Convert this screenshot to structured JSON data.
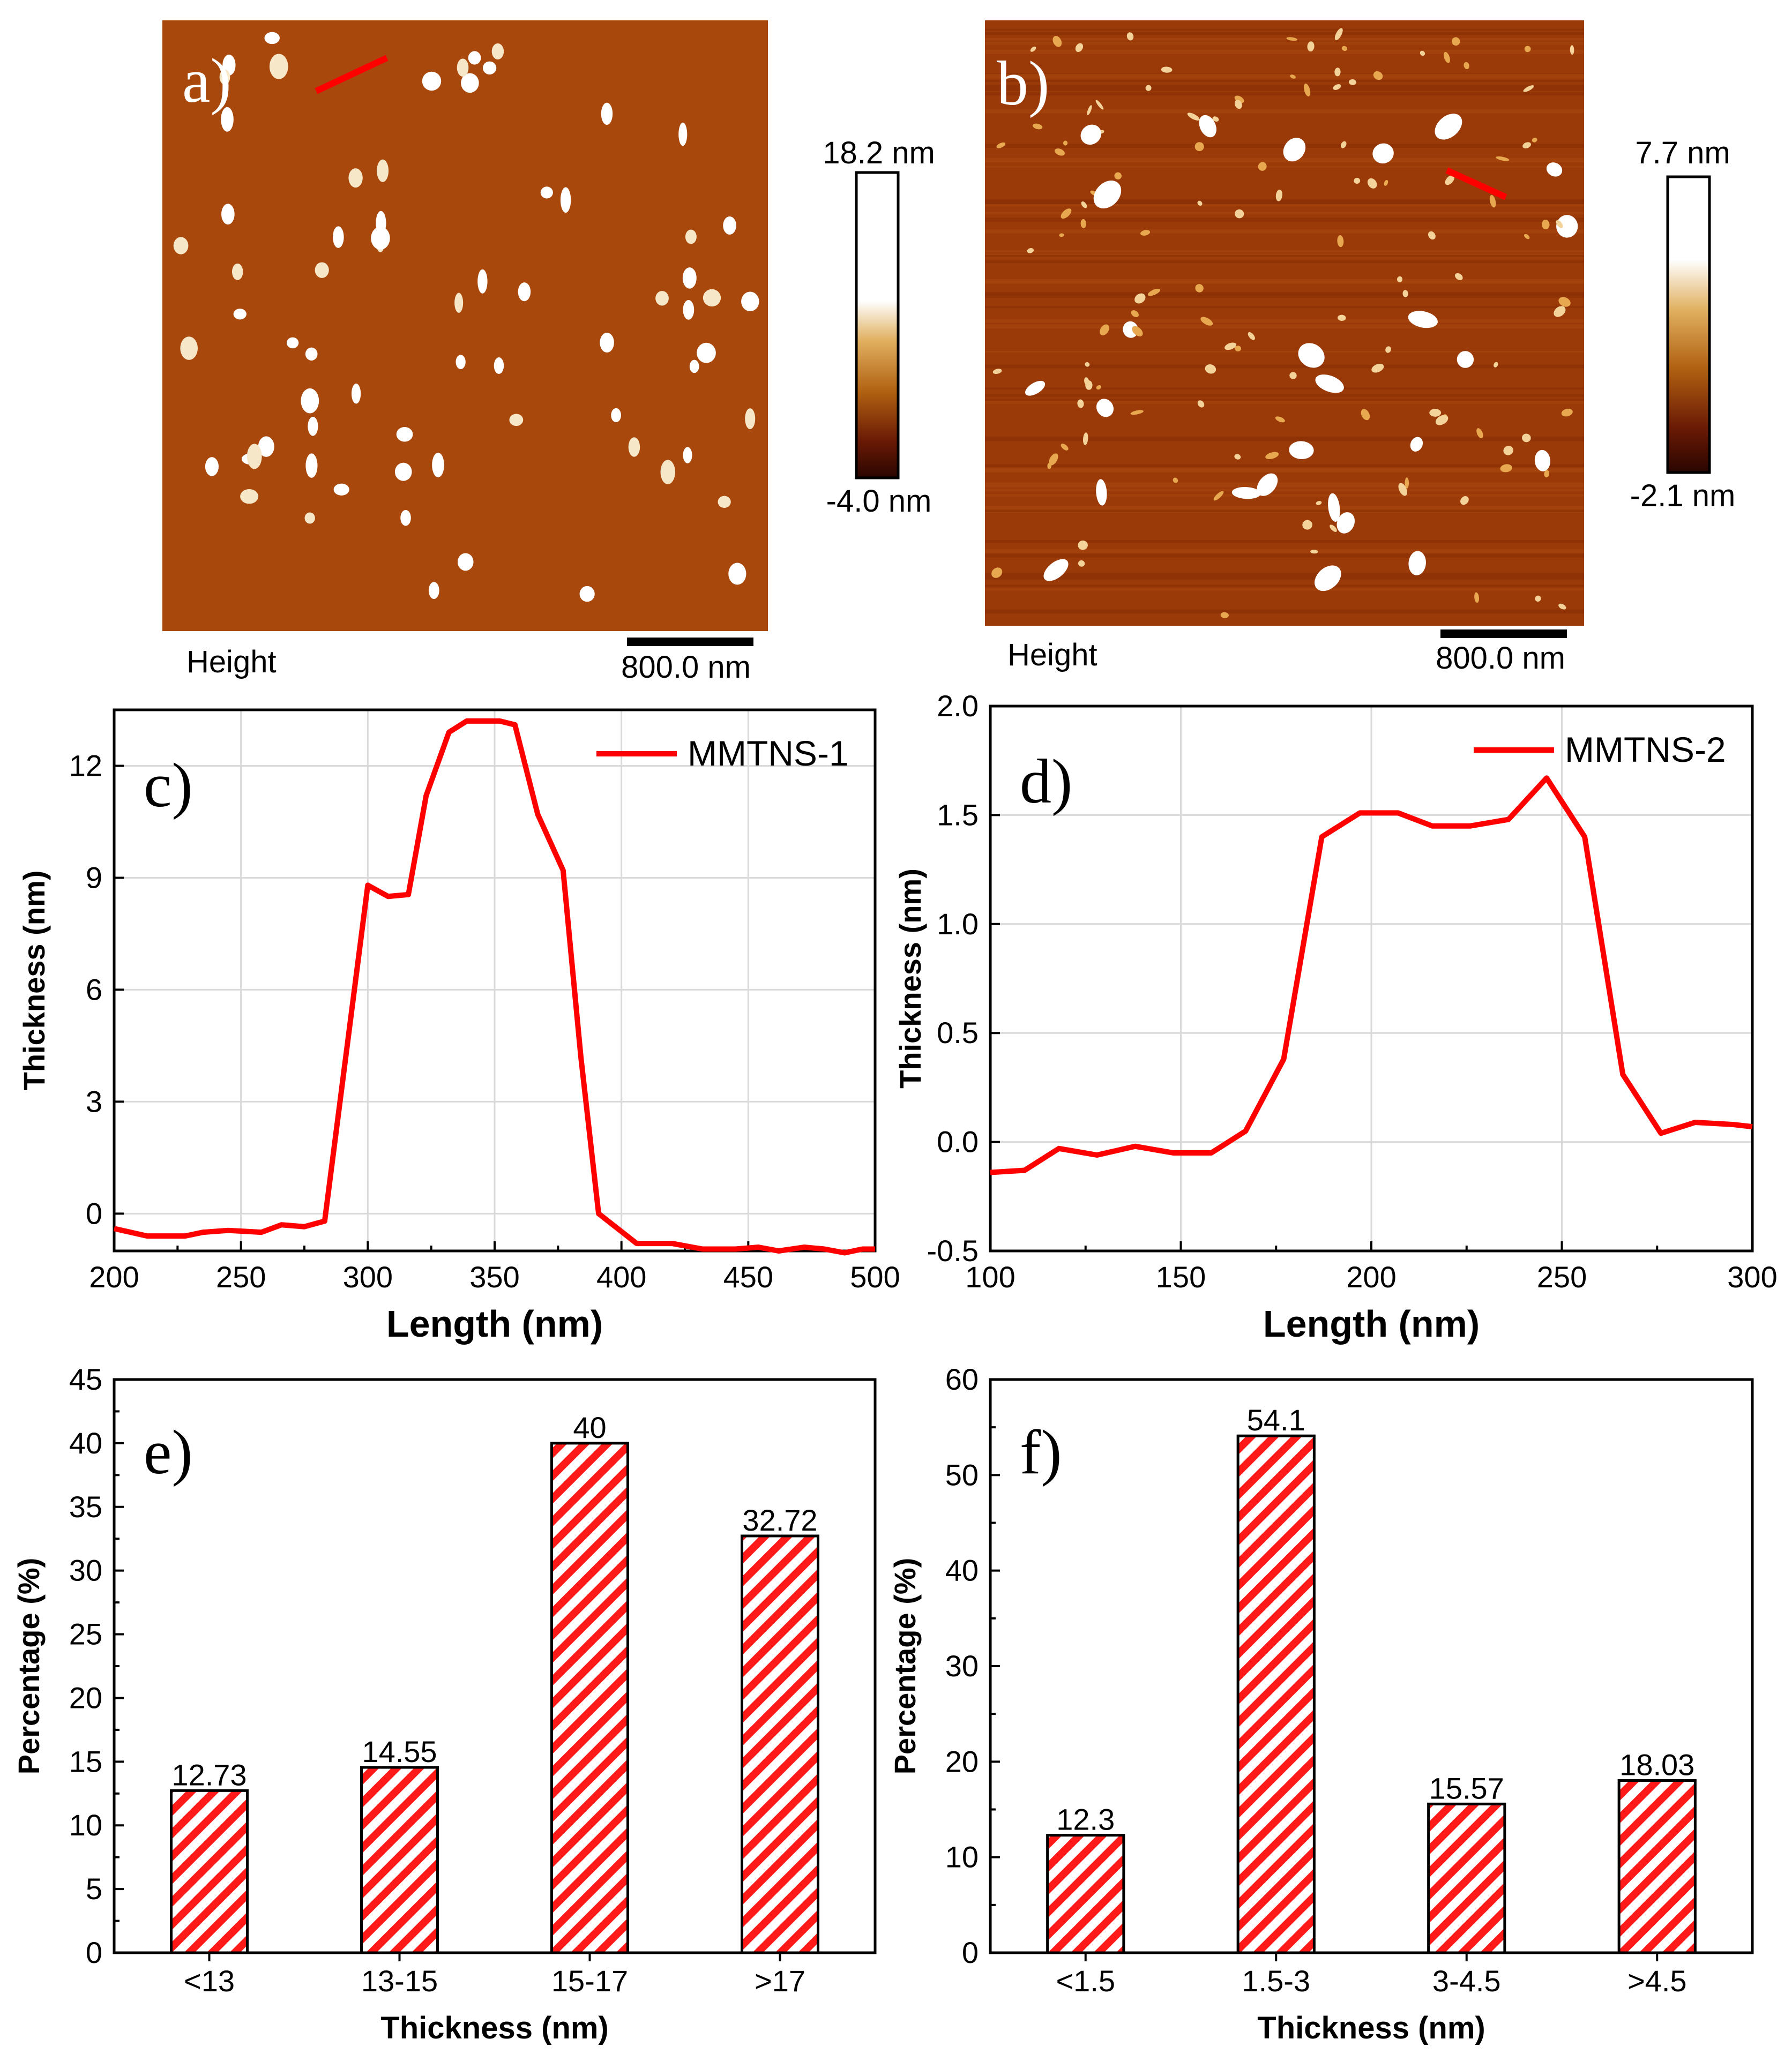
{
  "colors": {
    "line": "#ff0000",
    "bar_hatch": "#ff1a1a",
    "afm_bg_a": "#a8480c",
    "afm_bg_b": "#9a3a08",
    "grid": "#d9d9d9",
    "axis": "#000000"
  },
  "afm_images": [
    {
      "panel_label": "a)",
      "colorbar_max": "18.2 nm",
      "colorbar_min": "-4.0 nm",
      "channel": "Height",
      "scale_bar": "800.0 nm"
    },
    {
      "panel_label": "b)",
      "colorbar_max": "7.7 nm",
      "colorbar_min": "-2.1 nm",
      "channel": "Height",
      "scale_bar": "800.0 nm"
    }
  ],
  "chart_data": [
    {
      "panel_label": "c)",
      "type": "line",
      "title": "",
      "xlabel": "Length (nm)",
      "ylabel": "Thickness (nm)",
      "xlim": [
        200,
        500
      ],
      "ylim": [
        -1,
        13.5
      ],
      "xticks": [
        200,
        250,
        300,
        350,
        400,
        450,
        500
      ],
      "yticks": [
        0,
        3,
        6,
        9,
        12
      ],
      "grid": true,
      "legend_position": "top-right",
      "series": [
        {
          "name": "MMTNS-1",
          "x": [
            200,
            213,
            228,
            235,
            245,
            258,
            266,
            275,
            283,
            300,
            308,
            316,
            323,
            332,
            339,
            345,
            352,
            358,
            367,
            377,
            384,
            391,
            406,
            420,
            432,
            445,
            454,
            462,
            472,
            480,
            488,
            495,
            500
          ],
          "y": [
            -0.4,
            -0.6,
            -0.6,
            -0.5,
            -0.45,
            -0.5,
            -0.3,
            -0.35,
            -0.2,
            8.8,
            8.5,
            8.55,
            11.2,
            12.9,
            13.2,
            13.2,
            13.2,
            13.1,
            10.7,
            9.2,
            4.2,
            0,
            -0.8,
            -0.8,
            -0.95,
            -0.95,
            -0.9,
            -1.0,
            -0.9,
            -0.95,
            -1.05,
            -0.95,
            -0.95
          ]
        }
      ]
    },
    {
      "panel_label": "d)",
      "type": "line",
      "title": "",
      "xlabel": "Length (nm)",
      "ylabel": "Thickness (nm)",
      "xlim": [
        100,
        300
      ],
      "ylim": [
        -0.5,
        2.0
      ],
      "xticks": [
        100,
        150,
        200,
        250,
        300
      ],
      "yticks": [
        -0.5,
        0.0,
        0.5,
        1.0,
        1.5,
        2.0
      ],
      "grid": true,
      "legend_position": "top-right",
      "series": [
        {
          "name": "MMTNS-2",
          "x": [
            100,
            109,
            118,
            128,
            138,
            148,
            158,
            167,
            177,
            187,
            197,
            207,
            216,
            226,
            236,
            246,
            256,
            266,
            276,
            285,
            295,
            300
          ],
          "y": [
            -0.14,
            -0.13,
            -0.03,
            -0.06,
            -0.02,
            -0.05,
            -0.05,
            0.05,
            0.38,
            1.4,
            1.51,
            1.51,
            1.45,
            1.45,
            1.48,
            1.67,
            1.4,
            0.31,
            0.04,
            0.09,
            0.08,
            0.07
          ]
        }
      ]
    },
    {
      "panel_label": "e)",
      "type": "bar",
      "title": "",
      "xlabel": "Thickness (nm)",
      "ylabel": "Percentage (%)",
      "ylim": [
        0,
        45
      ],
      "yticks": [
        0,
        5,
        10,
        15,
        20,
        25,
        30,
        35,
        40,
        45
      ],
      "categories": [
        "<13",
        "13-15",
        "15-17",
        ">17"
      ],
      "values": [
        12.73,
        14.55,
        40,
        32.72
      ],
      "data_labels": [
        "12.73",
        "14.55",
        "40",
        "32.72"
      ],
      "grid": false
    },
    {
      "panel_label": "f)",
      "type": "bar",
      "title": "",
      "xlabel": "Thickness (nm)",
      "ylabel": "Percentage (%)",
      "ylim": [
        0,
        60
      ],
      "yticks": [
        0,
        10,
        20,
        30,
        40,
        50,
        60
      ],
      "categories": [
        "<1.5",
        "1.5-3",
        "3-4.5",
        ">4.5"
      ],
      "values": [
        12.3,
        54.1,
        15.57,
        18.03
      ],
      "data_labels": [
        "12.3",
        "54.1",
        "15.57",
        "18.03"
      ],
      "grid": false
    }
  ]
}
